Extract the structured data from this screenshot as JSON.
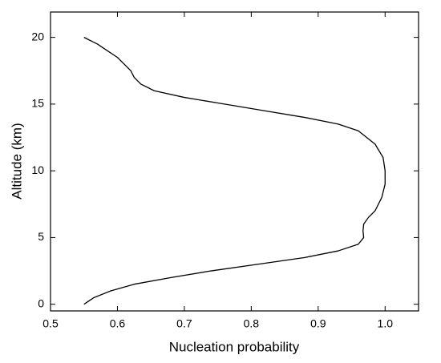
{
  "chart_data": {
    "type": "line",
    "xlabel": "Nucleation probability",
    "ylabel": "Altitude (km)",
    "x": [
      0.55,
      0.565,
      0.59,
      0.625,
      0.68,
      0.74,
      0.81,
      0.88,
      0.93,
      0.96,
      0.968,
      0.967,
      0.968,
      0.975,
      0.985,
      0.995,
      1.0,
      1.0,
      0.997,
      0.985,
      0.96,
      0.93,
      0.88,
      0.82,
      0.76,
      0.7,
      0.655,
      0.635,
      0.625,
      0.62,
      0.61,
      0.6,
      0.585,
      0.57,
      0.55
    ],
    "series": [
      {
        "color": "#000000",
        "values": [
          0,
          0.5,
          1,
          1.5,
          2,
          2.5,
          3,
          3.5,
          4,
          4.5,
          5,
          5.5,
          6,
          6.5,
          7,
          8,
          9,
          10,
          11,
          12,
          13,
          13.5,
          14,
          14.5,
          15,
          15.5,
          16,
          16.5,
          17,
          17.5,
          18,
          18.5,
          19,
          19.5,
          20
        ]
      }
    ],
    "xlim": [
      0.5,
      1.05
    ],
    "ylim": [
      -0.5,
      21.9
    ],
    "xticks": [
      0.5,
      0.6,
      0.7,
      0.8,
      0.9,
      {
        "value": 1,
        "label": "1.0"
      }
    ],
    "yticks": [
      0,
      5,
      10,
      15,
      20
    ]
  }
}
